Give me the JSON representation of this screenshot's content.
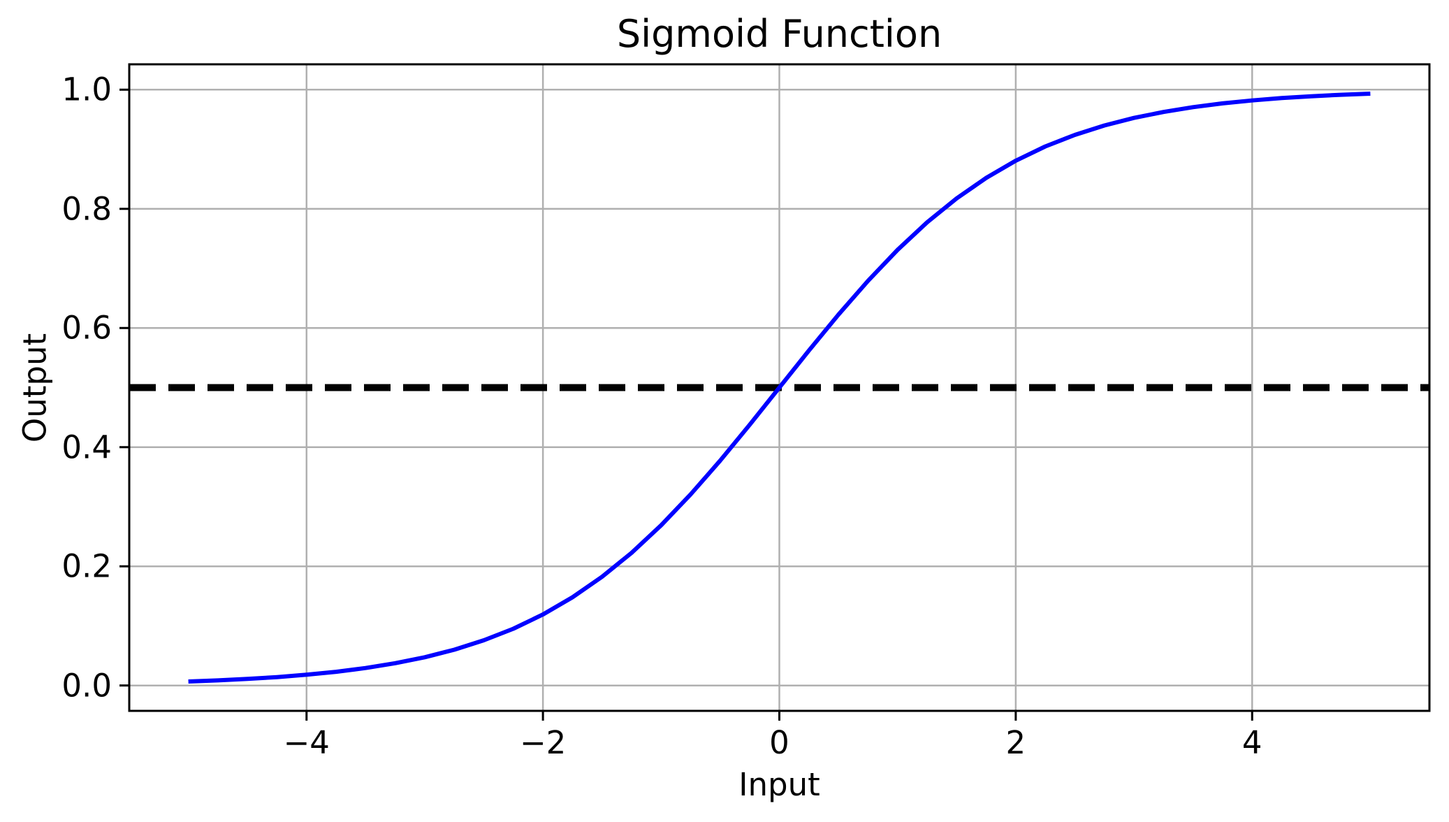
{
  "figure": {
    "title": "Sigmoid Function",
    "xlabel": "Input",
    "ylabel": "Output"
  },
  "chart_data": {
    "type": "line",
    "title": "Sigmoid Function",
    "xlabel": "Input",
    "ylabel": "Output",
    "xlim": [
      -5.5,
      5.5
    ],
    "ylim": [
      -0.0426,
      1.0426
    ],
    "grid": true,
    "grid_color": "#b0b0b0",
    "spine_color": "#000000",
    "tick_color": "#000000",
    "background": "#ffffff",
    "legend": false,
    "x_ticks": {
      "values": [
        -4,
        -2,
        0,
        2,
        4
      ],
      "labels": [
        "−4",
        "−2",
        "0",
        "2",
        "4"
      ]
    },
    "y_ticks": {
      "values": [
        0.0,
        0.2,
        0.4,
        0.6,
        0.8,
        1.0
      ],
      "labels": [
        "0.0",
        "0.2",
        "0.4",
        "0.6",
        "0.8",
        "1.0"
      ]
    },
    "series": [
      {
        "name": "threshold-line",
        "kind": "hline",
        "color": "#000000",
        "linewidth": 10,
        "linestyle": "dashed",
        "dash_pattern": [
          38,
          18
        ],
        "y": 0.5
      },
      {
        "name": "sigmoid-curve",
        "kind": "line",
        "color": "#0000ff",
        "linewidth": 6,
        "linestyle": "solid",
        "x": [
          -5,
          -4.75,
          -4.5,
          -4.25,
          -4,
          -3.75,
          -3.5,
          -3.25,
          -3,
          -2.75,
          -2.5,
          -2.25,
          -2,
          -1.75,
          -1.5,
          -1.25,
          -1,
          -0.75,
          -0.5,
          -0.25,
          0,
          0.25,
          0.5,
          0.75,
          1,
          1.25,
          1.5,
          1.75,
          2,
          2.25,
          2.5,
          2.75,
          3,
          3.25,
          3.5,
          3.75,
          4,
          4.25,
          4.5,
          4.75,
          5
        ],
        "y": [
          0.0067,
          0.0086,
          0.011,
          0.0141,
          0.018,
          0.023,
          0.0293,
          0.0374,
          0.0474,
          0.0601,
          0.0759,
          0.0953,
          0.1192,
          0.148,
          0.1824,
          0.2227,
          0.2689,
          0.3208,
          0.3775,
          0.4378,
          0.5,
          0.5622,
          0.6225,
          0.6792,
          0.7311,
          0.7773,
          0.8176,
          0.852,
          0.8808,
          0.9047,
          0.9241,
          0.9399,
          0.9526,
          0.9626,
          0.9707,
          0.977,
          0.982,
          0.9859,
          0.989,
          0.9914,
          0.9933
        ]
      }
    ]
  }
}
